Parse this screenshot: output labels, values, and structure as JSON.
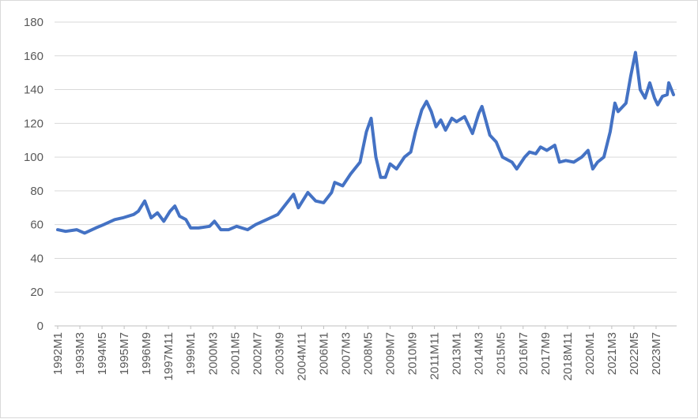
{
  "chart_data": {
    "type": "line",
    "title": "",
    "xlabel": "",
    "ylabel": "",
    "ylim": [
      0,
      180
    ],
    "y_ticks": [
      "0",
      "20",
      "40",
      "60",
      "80",
      "100",
      "120",
      "140",
      "160",
      "180"
    ],
    "x_tick_labels": [
      "1992M1",
      "1993M3",
      "1994M5",
      "1995M7",
      "1996M9",
      "1997M11",
      "1999M1",
      "2000M3",
      "2001M5",
      "2002M7",
      "2003M9",
      "2004M11",
      "2006M1",
      "2007M3",
      "2008M5",
      "2009M7",
      "2010M9",
      "2011M11",
      "2013M1",
      "2014M3",
      "2015M5",
      "2016M7",
      "2017M9",
      "2018M11",
      "2020M1",
      "2021M3",
      "2022M5",
      "2023M7"
    ],
    "grid": true,
    "legend": "none",
    "line_color": "#4472C4",
    "series": [
      {
        "points": [
          [
            "1992M1",
            57
          ],
          [
            "1992M6",
            56
          ],
          [
            "1993M1",
            57
          ],
          [
            "1993M6",
            55
          ],
          [
            "1994M1",
            58
          ],
          [
            "1994M6",
            60
          ],
          [
            "1995M1",
            63
          ],
          [
            "1995M6",
            64
          ],
          [
            "1996M1",
            66
          ],
          [
            "1996M4",
            68
          ],
          [
            "1996M8",
            74
          ],
          [
            "1996M12",
            64
          ],
          [
            "1997M4",
            67
          ],
          [
            "1997M8",
            62
          ],
          [
            "1997M12",
            68
          ],
          [
            "1998M3",
            71
          ],
          [
            "1998M6",
            65
          ],
          [
            "1998M10",
            63
          ],
          [
            "1999M1",
            58
          ],
          [
            "1999M6",
            58
          ],
          [
            "2000M1",
            59
          ],
          [
            "2000M4",
            62
          ],
          [
            "2000M8",
            57
          ],
          [
            "2001M1",
            57
          ],
          [
            "2001M6",
            59
          ],
          [
            "2002M1",
            57
          ],
          [
            "2002M6",
            60
          ],
          [
            "2003M1",
            63
          ],
          [
            "2003M8",
            66
          ],
          [
            "2004M1",
            72
          ],
          [
            "2004M6",
            78
          ],
          [
            "2004M9",
            70
          ],
          [
            "2005M3",
            79
          ],
          [
            "2005M8",
            74
          ],
          [
            "2006M1",
            73
          ],
          [
            "2006M6",
            79
          ],
          [
            "2006M8",
            85
          ],
          [
            "2007M1",
            83
          ],
          [
            "2007M6",
            90
          ],
          [
            "2007M12",
            97
          ],
          [
            "2008M4",
            115
          ],
          [
            "2008M7",
            123
          ],
          [
            "2008M10",
            100
          ],
          [
            "2009M1",
            88
          ],
          [
            "2009M4",
            88
          ],
          [
            "2009M7",
            96
          ],
          [
            "2009M11",
            93
          ],
          [
            "2010M4",
            100
          ],
          [
            "2010M8",
            103
          ],
          [
            "2010M11",
            115
          ],
          [
            "2011M3",
            128
          ],
          [
            "2011M6",
            133
          ],
          [
            "2011M9",
            127
          ],
          [
            "2011M12",
            118
          ],
          [
            "2012M3",
            122
          ],
          [
            "2012M6",
            116
          ],
          [
            "2012M10",
            123
          ],
          [
            "2013M1",
            121
          ],
          [
            "2013M6",
            124
          ],
          [
            "2013M11",
            114
          ],
          [
            "2014M3",
            126
          ],
          [
            "2014M5",
            130
          ],
          [
            "2014M10",
            113
          ],
          [
            "2015M2",
            109
          ],
          [
            "2015M6",
            100
          ],
          [
            "2015M12",
            97
          ],
          [
            "2016M3",
            93
          ],
          [
            "2016M8",
            100
          ],
          [
            "2016M11",
            103
          ],
          [
            "2017M3",
            102
          ],
          [
            "2017M6",
            106
          ],
          [
            "2017M10",
            104
          ],
          [
            "2018M3",
            107
          ],
          [
            "2018M6",
            97
          ],
          [
            "2018M10",
            98
          ],
          [
            "2019M3",
            97
          ],
          [
            "2019M8",
            100
          ],
          [
            "2019M12",
            104
          ],
          [
            "2020M3",
            93
          ],
          [
            "2020M6",
            97
          ],
          [
            "2020M10",
            100
          ],
          [
            "2021M2",
            115
          ],
          [
            "2021M5",
            132
          ],
          [
            "2021M7",
            127
          ],
          [
            "2021M12",
            132
          ],
          [
            "2022M3",
            148
          ],
          [
            "2022M6",
            162
          ],
          [
            "2022M9",
            140
          ],
          [
            "2022M12",
            135
          ],
          [
            "2023M3",
            144
          ],
          [
            "2023M6",
            135
          ],
          [
            "2023M8",
            131
          ],
          [
            "2023M11",
            136
          ],
          [
            "2024M2",
            137
          ],
          [
            "2024M3",
            144
          ],
          [
            "2024M6",
            137
          ]
        ]
      }
    ]
  }
}
